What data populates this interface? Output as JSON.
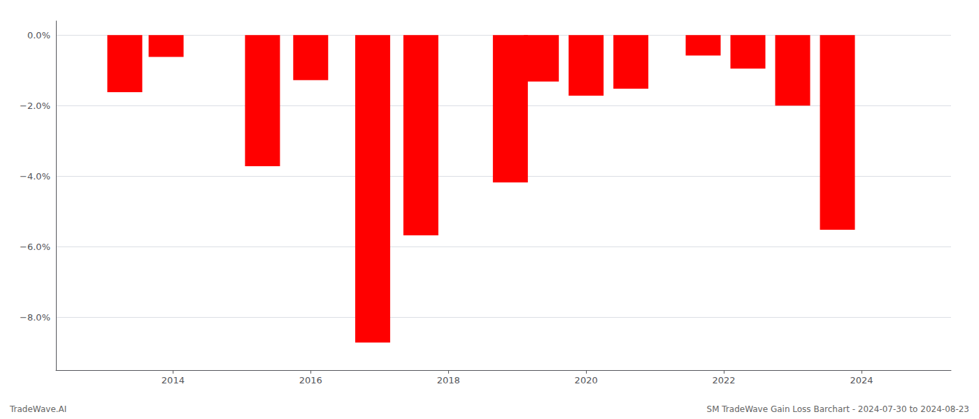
{
  "chart_data": {
    "type": "bar",
    "x": [
      2013.3,
      2013.9,
      2015.3,
      2016.0,
      2016.9,
      2017.6,
      2018.9,
      2019.35,
      2020.0,
      2020.65,
      2021.7,
      2022.35,
      2023.0,
      2023.65
    ],
    "values": [
      -1.62,
      -0.62,
      -3.72,
      -1.28,
      -8.72,
      -5.68,
      -4.18,
      -1.32,
      -1.72,
      -1.52,
      -0.58,
      -0.95,
      -2.0,
      -5.52
    ],
    "color": "#ff0000",
    "xlim": [
      2012.3,
      2025.3
    ],
    "xticks": [
      2014,
      2016,
      2018,
      2020,
      2022,
      2024
    ],
    "ylim": [
      -9.5,
      0.4
    ],
    "yticks": [
      {
        "value": 0.0,
        "label": "0.0%"
      },
      {
        "value": -2.0,
        "label": "−2.0%"
      },
      {
        "value": -4.0,
        "label": "−4.0%"
      },
      {
        "value": -6.0,
        "label": "−6.0%"
      },
      {
        "value": -8.0,
        "label": "−8.0%"
      }
    ],
    "grid": true,
    "annotations": [
      "TradeWave.AI",
      "SM TradeWave Gain Loss Barchart - 2024-07-30 to 2024-08-23"
    ]
  }
}
